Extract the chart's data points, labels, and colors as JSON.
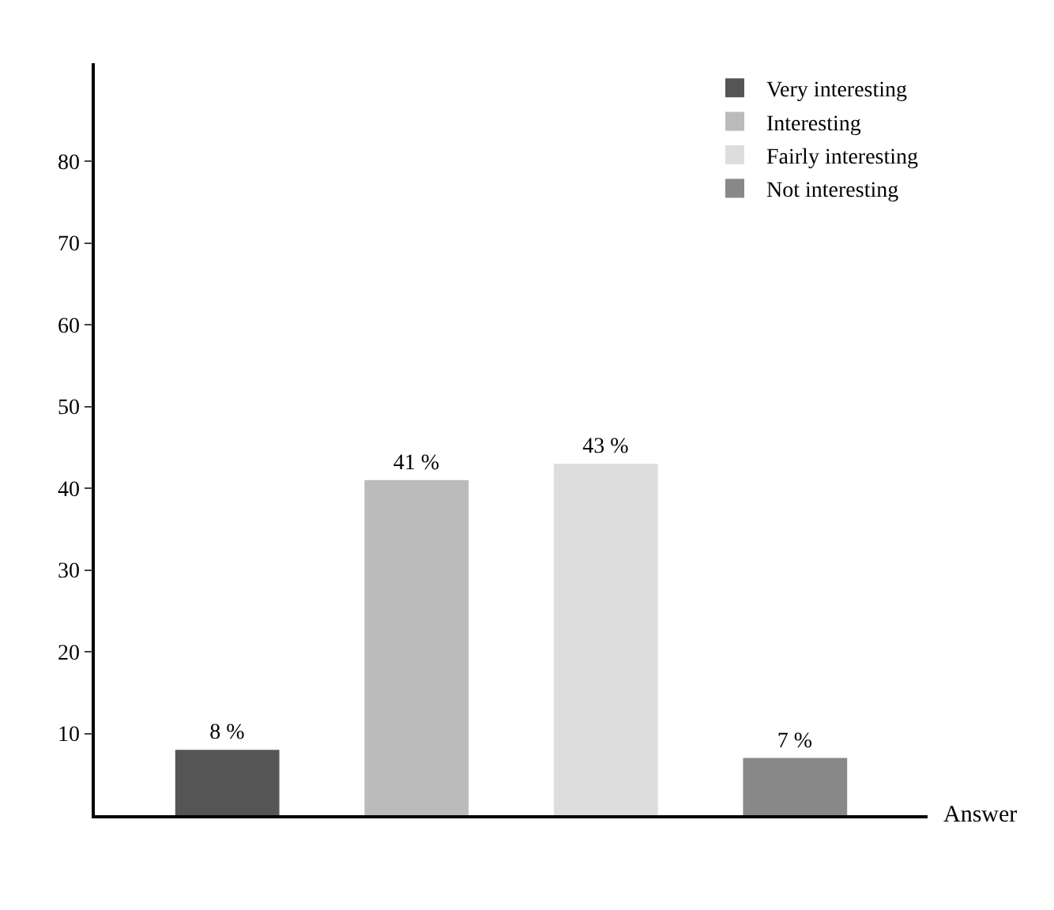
{
  "chart_data": {
    "type": "bar",
    "xlabel": "Answer",
    "categories": [
      null,
      null,
      null,
      null
    ],
    "series": [
      {
        "name": "Very interesting",
        "color": "#555555",
        "values": [
          8,
          null,
          null,
          null
        ],
        "value_labels": [
          "8 %",
          null,
          null,
          null
        ]
      },
      {
        "name": "Interesting",
        "color": "#bbbbbb",
        "values": [
          null,
          41,
          null,
          null
        ],
        "value_labels": [
          null,
          "41 %",
          null,
          null
        ]
      },
      {
        "name": "Fairly interesting",
        "color": "#dddddd",
        "values": [
          null,
          null,
          43,
          null
        ],
        "value_labels": [
          null,
          null,
          "43 %",
          null
        ]
      },
      {
        "name": "Not interesting",
        "color": "#888888",
        "values": [
          null,
          null,
          null,
          7
        ],
        "value_labels": [
          null,
          null,
          null,
          "7 %"
        ]
      }
    ],
    "ylim": [
      0,
      92
    ],
    "yticks": [
      10,
      20,
      30,
      40,
      50,
      60,
      70,
      80
    ],
    "legend": "top right"
  }
}
